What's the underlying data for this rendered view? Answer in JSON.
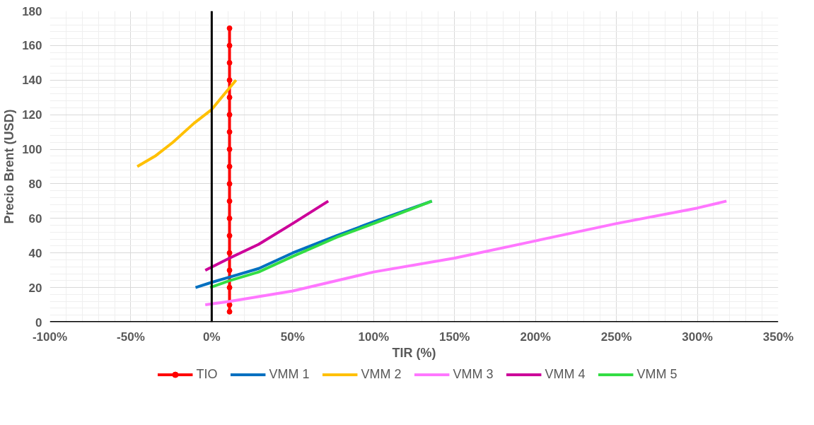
{
  "chart_data": {
    "type": "line",
    "xlabel": "TIR (%)",
    "ylabel": "Precio Brent (USD)",
    "xlim": [
      -100,
      350
    ],
    "ylim": [
      0,
      180
    ],
    "xticks": [
      {
        "value": -100,
        "label": "-100%"
      },
      {
        "value": -50,
        "label": "-50%"
      },
      {
        "value": 0,
        "label": "0%"
      },
      {
        "value": 50,
        "label": "50%"
      },
      {
        "value": 100,
        "label": "100%"
      },
      {
        "value": 150,
        "label": "150%"
      },
      {
        "value": 200,
        "label": "200%"
      },
      {
        "value": 250,
        "label": "250%"
      },
      {
        "value": 300,
        "label": "300%"
      },
      {
        "value": 350,
        "label": "350%"
      }
    ],
    "yticks": [
      0,
      20,
      40,
      60,
      80,
      100,
      120,
      140,
      160,
      180
    ],
    "grid": true,
    "legend": "bottom",
    "series": [
      {
        "name": "TIO",
        "color": "#ff0000",
        "marker": "circle",
        "x": [
          11,
          11,
          11,
          11,
          11,
          11,
          11,
          11,
          11,
          11,
          11,
          11,
          11,
          11,
          11,
          11,
          11,
          11
        ],
        "values": [
          6,
          10,
          20,
          30,
          40,
          50,
          60,
          70,
          80,
          90,
          100,
          110,
          120,
          130,
          140,
          150,
          160,
          170
        ]
      },
      {
        "name": "VMM 1",
        "color": "#0070c0",
        "x": [
          -10,
          0,
          11,
          29,
          50,
          77,
          100,
          136
        ],
        "values": [
          20,
          23,
          26,
          31,
          40,
          50,
          58,
          70
        ]
      },
      {
        "name": "VMM 2",
        "color": "#ffc000",
        "x": [
          -46,
          -35,
          -24,
          -11,
          0,
          7,
          15
        ],
        "values": [
          90,
          96,
          104,
          115,
          123,
          131,
          140
        ]
      },
      {
        "name": "VMM 3",
        "color": "#ff77ff",
        "x": [
          -4,
          11,
          50,
          100,
          150,
          200,
          250,
          300,
          318
        ],
        "values": [
          10,
          12,
          18,
          29,
          37,
          47,
          57,
          66,
          70
        ]
      },
      {
        "name": "VMM 4",
        "color": "#cc0099",
        "x": [
          -4,
          11,
          29,
          50,
          72
        ],
        "values": [
          30,
          37,
          45,
          57,
          70
        ]
      },
      {
        "name": "VMM 5",
        "color": "#33dd44",
        "x": [
          -1,
          11,
          29,
          50,
          77,
          100,
          136
        ],
        "values": [
          20,
          24,
          29,
          38,
          49,
          57,
          70
        ]
      }
    ]
  }
}
